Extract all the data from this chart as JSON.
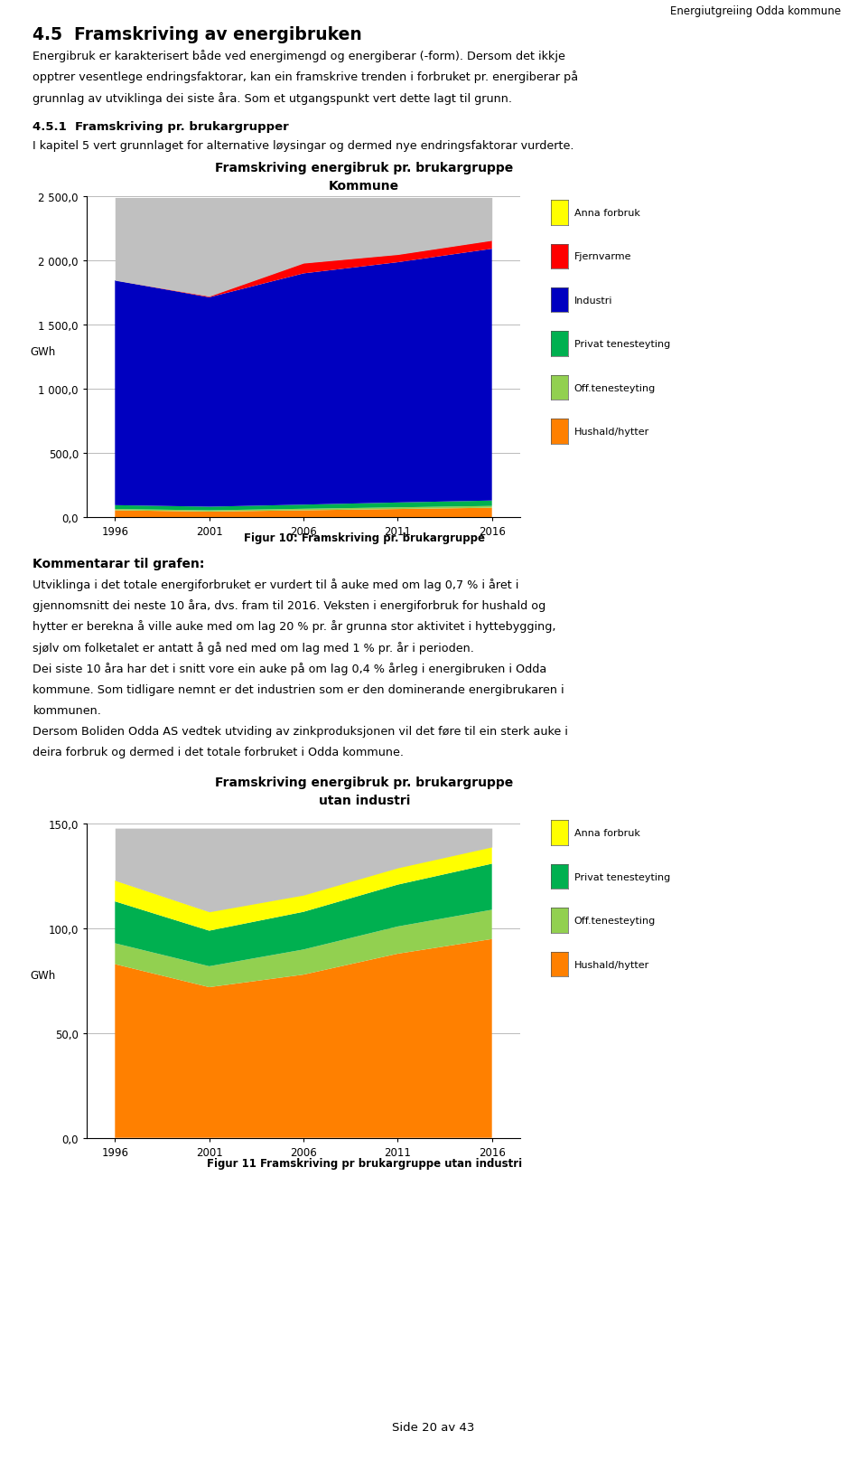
{
  "page_header": "Energiutgreiing Odda kommune",
  "section_title": "4.5  Framskriving av energibruken",
  "para1": "Energibruk er karakterisert både ved energimengd og energiberar (-form). Dersom det ikkje opptrer vesentlege endringsfaktorar, kan ein framskrive trenden i forbruket pr. energiberar på grunnlag av utviklinga dei siste åra. Som et utgangspunkt vert dette lagt til grunn.",
  "subsection_title": "4.5.1  Framskriving pr. brukargrupper",
  "para2": "I kapitel 5 vert grunnlaget for alternative løysingar og dermed nye endringsfaktorar vurderte.",
  "chart1_title_line1": "Framskriving energibruk pr. brukargruppe",
  "chart1_title_line2": "Kommune",
  "chart1_years": [
    1996,
    2001,
    2006,
    2011,
    2016
  ],
  "chart1_ylabel": "GWh",
  "chart1_ylim": [
    0,
    2500
  ],
  "chart1_yticks": [
    0.0,
    500.0,
    1000.0,
    1500.0,
    2000.0,
    2500.0
  ],
  "chart1_ytick_labels": [
    "0,0",
    "500,0",
    "1 000,0",
    "1 500,0",
    "2 000,0",
    "2 500,0"
  ],
  "chart1_data": {
    "Hushald/hytter": [
      55,
      45,
      55,
      65,
      75
    ],
    "Off.tenesteyting": [
      10,
      10,
      12,
      13,
      14
    ],
    "Privat tenesteyting": [
      30,
      28,
      32,
      38,
      42
    ],
    "Industri": [
      1750,
      1630,
      1800,
      1870,
      1960
    ],
    "Fjernvarme": [
      0,
      8,
      80,
      60,
      65
    ],
    "Anna forbruk": [
      0,
      0,
      0,
      0,
      0
    ]
  },
  "chart1_colors": {
    "Hushald/hytter": "#FF8000",
    "Off.tenesteyting": "#92D050",
    "Privat tenesteyting": "#00B050",
    "Industri": "#0000C0",
    "Fjernvarme": "#FF0000",
    "Anna forbruk": "#FFFF00"
  },
  "chart1_gray_val": 2490,
  "chart1_legend_order": [
    "Anna forbruk",
    "Fjernvarme",
    "Industri",
    "Privat tenesteyting",
    "Off.tenesteyting",
    "Hushald/hytter"
  ],
  "fig10_caption": "Figur 10: Framskriving pr. brukargruppe",
  "comment_header": "Kommentarar til grafen:",
  "comment_para1": "Utviklinga i det totale energiforbruket er vurdert til å auke med om lag 0,7 % i året i gjennomsnitt dei neste 10 åra, dvs. fram til 2016. Veksten i energiforbruk for hushald og hytter er berekna å ville auke med om lag 20 % pr. år grunna stor aktivitet i hyttebygging, sjølv om folketalet er antatt å gå ned med om lag med 1 % pr. år i perioden.",
  "comment_para2": "Dei siste 10 åra har det i snitt vore ein auke på om lag 0,4 % årleg i energibruken i Odda kommune. Som tidligare nemnt er det industrien som er den dominerande energibrukaren i kommunen.",
  "comment_para3": "Dersom Boliden Odda AS vedtek utviding av zinkproduksjonen vil det føre til ein sterk auke i deira forbruk og dermed i det totale forbruket i Odda kommune.",
  "chart2_title_line1": "Framskriving energibruk pr. brukargruppe",
  "chart2_title_line2": "utan industri",
  "chart2_years": [
    1996,
    2001,
    2006,
    2011,
    2016
  ],
  "chart2_ylabel": "GWh",
  "chart2_ylim": [
    0,
    150
  ],
  "chart2_yticks": [
    0.0,
    50.0,
    100.0,
    150.0
  ],
  "chart2_ytick_labels": [
    "0,0",
    "50,0",
    "100,0",
    "150,0"
  ],
  "chart2_data": {
    "Hushald/hytter": [
      83,
      72,
      78,
      88,
      95
    ],
    "Off.tenesteyting": [
      10,
      10,
      12,
      13,
      14
    ],
    "Privat tenesteyting": [
      20,
      17,
      18,
      20,
      22
    ],
    "Anna forbruk": [
      10,
      9,
      8,
      8,
      8
    ]
  },
  "chart2_gray_val": 148,
  "chart2_colors": {
    "Hushald/hytter": "#FF8000",
    "Off.tenesteyting": "#92D050",
    "Privat tenesteyting": "#00B050",
    "Anna forbruk": "#FFFF00"
  },
  "chart2_legend_order": [
    "Anna forbruk",
    "Privat tenesteyting",
    "Off.tenesteyting",
    "Hushald/hytter"
  ],
  "fig11_caption": "Figur 11 Framskriving pr brukargruppe utan industri",
  "page_footer": "Side 20 av 43",
  "bg_color": "#FFFFFF",
  "gray_color": "#C0C0C0"
}
